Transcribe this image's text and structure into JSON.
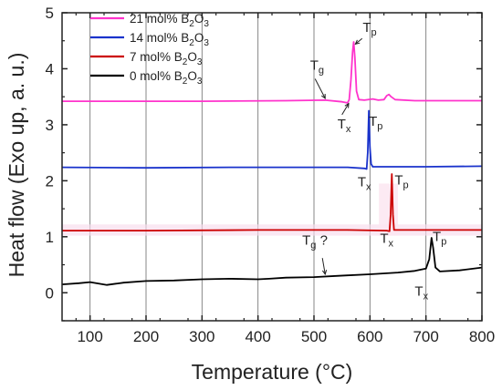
{
  "chart_data": {
    "type": "line",
    "xlabel": "Temperature (°C)",
    "ylabel": "Heat flow (Exo up, a. u.)",
    "xlim": [
      50,
      800
    ],
    "ylim": [
      -0.5,
      5
    ],
    "xticks": [
      100,
      200,
      300,
      400,
      500,
      600,
      700,
      800
    ],
    "yticks": [
      0,
      1,
      2,
      3,
      4,
      5
    ],
    "grid": "vertical",
    "legend": {
      "placement": "top-left"
    },
    "series": [
      {
        "name": "21 mol% B2O3",
        "label": {
          "pre": "21 mol% B",
          "sub1": "2",
          "mid": "O",
          "sub2": "3"
        },
        "color": "#ff33cc",
        "points": [
          [
            50,
            3.42
          ],
          [
            150,
            3.42
          ],
          [
            300,
            3.42
          ],
          [
            450,
            3.43
          ],
          [
            520,
            3.44
          ],
          [
            550,
            3.41
          ],
          [
            560,
            3.39
          ],
          [
            563,
            3.45
          ],
          [
            566,
            3.8
          ],
          [
            569,
            4.3
          ],
          [
            571,
            4.48
          ],
          [
            573,
            4.2
          ],
          [
            576,
            3.6
          ],
          [
            580,
            3.45
          ],
          [
            590,
            3.44
          ],
          [
            605,
            3.46
          ],
          [
            615,
            3.44
          ],
          [
            625,
            3.45
          ],
          [
            630,
            3.52
          ],
          [
            634,
            3.54
          ],
          [
            638,
            3.5
          ],
          [
            645,
            3.45
          ],
          [
            680,
            3.43
          ],
          [
            750,
            3.43
          ],
          [
            800,
            3.43
          ]
        ]
      },
      {
        "name": "14 mol% B2O3",
        "label": {
          "pre": "14 mol% B",
          "sub1": "2",
          "mid": "O",
          "sub2": "3"
        },
        "color": "#1a33cc",
        "points": [
          [
            50,
            2.24
          ],
          [
            200,
            2.23
          ],
          [
            350,
            2.24
          ],
          [
            500,
            2.24
          ],
          [
            560,
            2.24
          ],
          [
            590,
            2.22
          ],
          [
            594,
            2.21
          ],
          [
            596,
            2.5
          ],
          [
            598,
            3.25
          ],
          [
            600,
            2.6
          ],
          [
            602,
            2.3
          ],
          [
            605,
            2.25
          ],
          [
            650,
            2.25
          ],
          [
            700,
            2.25
          ],
          [
            800,
            2.26
          ]
        ]
      },
      {
        "name": "7 mol% B2O3",
        "label": {
          "pre": "7 mol% B",
          "sub1": "2",
          "mid": "O",
          "sub2": "3"
        },
        "color": "#cc0000",
        "points": [
          [
            50,
            1.11
          ],
          [
            200,
            1.11
          ],
          [
            400,
            1.12
          ],
          [
            560,
            1.12
          ],
          [
            630,
            1.11
          ],
          [
            635,
            1.1
          ],
          [
            637,
            1.4
          ],
          [
            639,
            2.12
          ],
          [
            641,
            1.4
          ],
          [
            643,
            1.12
          ],
          [
            700,
            1.12
          ],
          [
            800,
            1.12
          ]
        ]
      },
      {
        "name": "0 mol% B2O3",
        "label": {
          "pre": "0 mol% B",
          "sub1": "2",
          "mid": "O",
          "sub2": "3"
        },
        "color": "#000000",
        "points": [
          [
            50,
            0.15
          ],
          [
            80,
            0.17
          ],
          [
            100,
            0.19
          ],
          [
            130,
            0.14
          ],
          [
            160,
            0.18
          ],
          [
            200,
            0.21
          ],
          [
            250,
            0.22
          ],
          [
            300,
            0.24
          ],
          [
            350,
            0.25
          ],
          [
            400,
            0.24
          ],
          [
            420,
            0.25
          ],
          [
            450,
            0.27
          ],
          [
            500,
            0.28
          ],
          [
            540,
            0.3
          ],
          [
            560,
            0.31
          ],
          [
            600,
            0.33
          ],
          [
            650,
            0.36
          ],
          [
            680,
            0.39
          ],
          [
            700,
            0.43
          ],
          [
            706,
            0.6
          ],
          [
            710,
            0.98
          ],
          [
            713,
            0.8
          ],
          [
            717,
            0.45
          ],
          [
            725,
            0.38
          ],
          [
            760,
            0.4
          ],
          [
            800,
            0.45
          ]
        ]
      }
    ],
    "annotations": [
      {
        "id": "tp21",
        "base": "T",
        "sub": "p",
        "x": 587,
        "y": 4.66
      },
      {
        "id": "tg21",
        "base": "T",
        "sub": "g",
        "x": 493,
        "y": 3.98
      },
      {
        "id": "tx21",
        "base": "T",
        "sub": "x",
        "x": 542,
        "y": 2.93
      },
      {
        "id": "tp14",
        "base": "T",
        "sub": "p",
        "x": 598,
        "y": 2.98
      },
      {
        "id": "tx14",
        "base": "T",
        "sub": "x",
        "x": 578,
        "y": 1.9
      },
      {
        "id": "tp7",
        "base": "T",
        "sub": "p",
        "x": 644,
        "y": 1.93
      },
      {
        "id": "tx7",
        "base": "T",
        "sub": "x",
        "x": 618,
        "y": 0.89
      },
      {
        "id": "tg0",
        "base": "T",
        "sub": "g",
        "suffix": " ?",
        "x": 479,
        "y": 0.86
      },
      {
        "id": "tp0",
        "base": "T",
        "sub": "p",
        "x": 712,
        "y": 0.92
      },
      {
        "id": "tx0",
        "base": "T",
        "sub": "x",
        "x": 680,
        "y": -0.05
      }
    ]
  }
}
